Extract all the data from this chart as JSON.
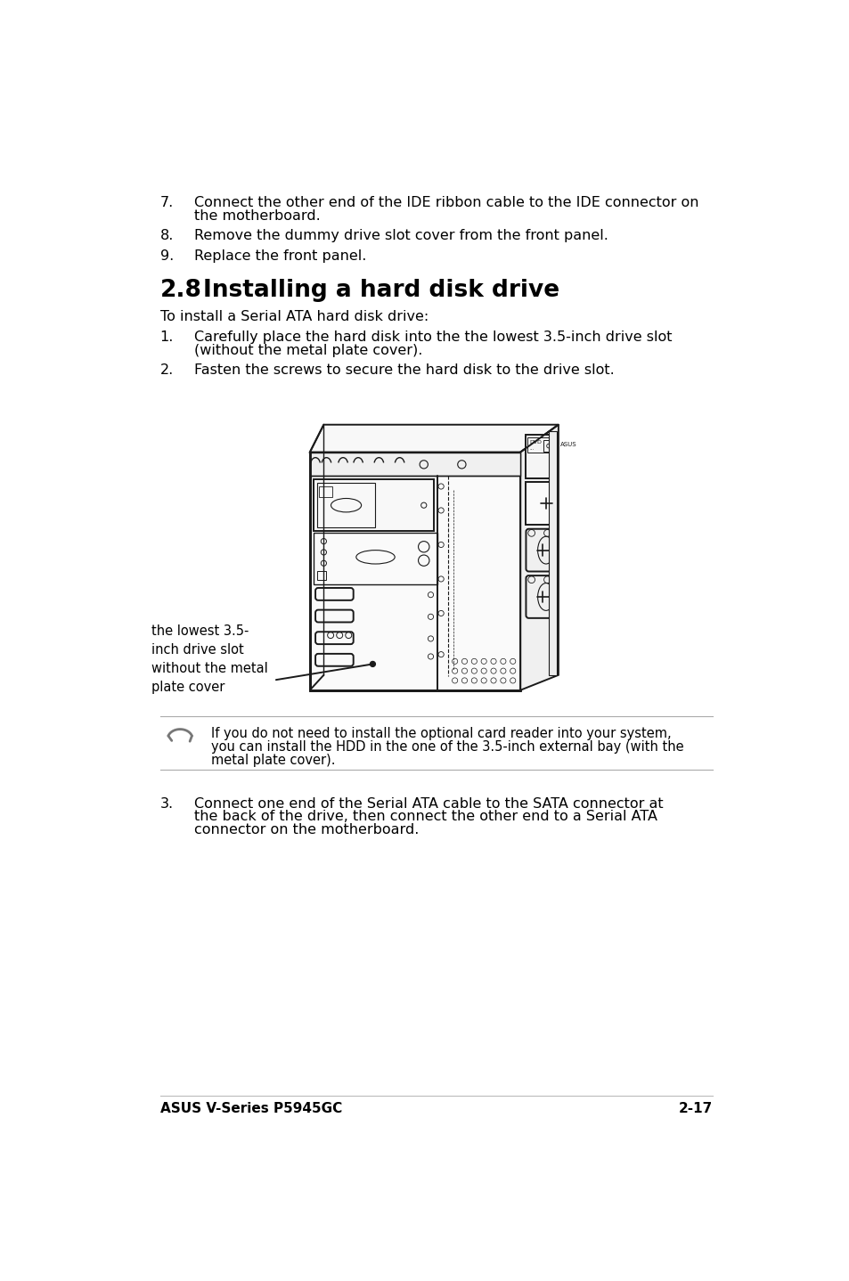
{
  "bg_color": "#ffffff",
  "text_color": "#000000",
  "footer_text_left": "ASUS V-Series P5945GC",
  "footer_text_right": "2-17",
  "section_number": "2.8",
  "section_title": "Installing a hard disk drive",
  "intro_text": "To install a Serial ATA hard disk drive:",
  "items_top": [
    {
      "num": "7.",
      "text": "Connect the other end of the IDE ribbon cable to the IDE connector on",
      "cont": "the motherboard."
    },
    {
      "num": "8.",
      "text": "Remove the dummy drive slot cover from the front panel.",
      "cont": ""
    },
    {
      "num": "9.",
      "text": "Replace the front panel.",
      "cont": ""
    }
  ],
  "items_step": [
    {
      "num": "1.",
      "text": "Carefully place the hard disk into the the lowest 3.5-inch drive slot",
      "cont": "(without the metal plate cover)."
    },
    {
      "num": "2.",
      "text": "Fasten the screws to secure the hard disk to the drive slot.",
      "cont": ""
    }
  ],
  "item3_num": "3.",
  "item3_lines": [
    "Connect one end of the Serial ATA cable to the SATA connector at",
    "the back of the drive, then connect the other end to a Serial ATA",
    "connector on the motherboard."
  ],
  "note_lines": [
    "If you do not need to install the optional card reader into your system,",
    "you can install the HDD in the one of the 3.5-inch external bay (with the",
    "metal plate cover)."
  ],
  "callout_text": "the lowest 3.5-\ninch drive slot\nwithout the metal\nplate cover",
  "lm": 78,
  "nm": 78,
  "tm": 128,
  "rm": 878
}
